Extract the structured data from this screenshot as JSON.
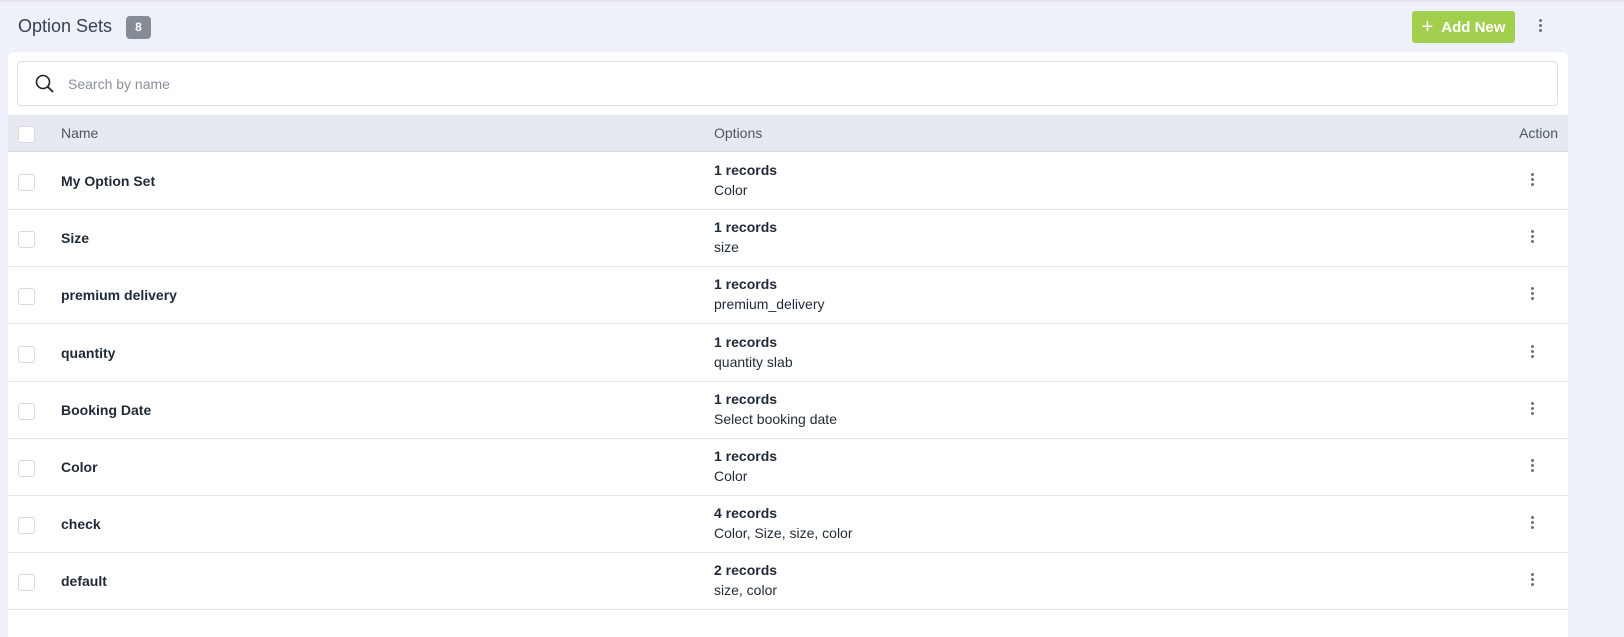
{
  "header": {
    "title": "Option Sets",
    "count": "8",
    "add_label": "Add New"
  },
  "search": {
    "placeholder": "Search by name"
  },
  "table": {
    "columns": [
      "Name",
      "Options",
      "Action"
    ],
    "rows": [
      {
        "name": "My Option Set",
        "records": "1 records",
        "options": "Color"
      },
      {
        "name": "Size",
        "records": "1 records",
        "options": "size"
      },
      {
        "name": "premium delivery",
        "records": "1 records",
        "options": "premium_delivery"
      },
      {
        "name": "quantity",
        "records": "1 records",
        "options": "quantity slab"
      },
      {
        "name": "Booking Date",
        "records": "1 records",
        "options": "Select booking date"
      },
      {
        "name": "Color",
        "records": "1 records",
        "options": "Color"
      },
      {
        "name": "check",
        "records": "4 records",
        "options": "Color, Size, size, color"
      },
      {
        "name": "default",
        "records": "2 records",
        "options": "size, color"
      }
    ]
  },
  "colors": {
    "accent": "#a3cf4e",
    "badge": "#868c96"
  }
}
